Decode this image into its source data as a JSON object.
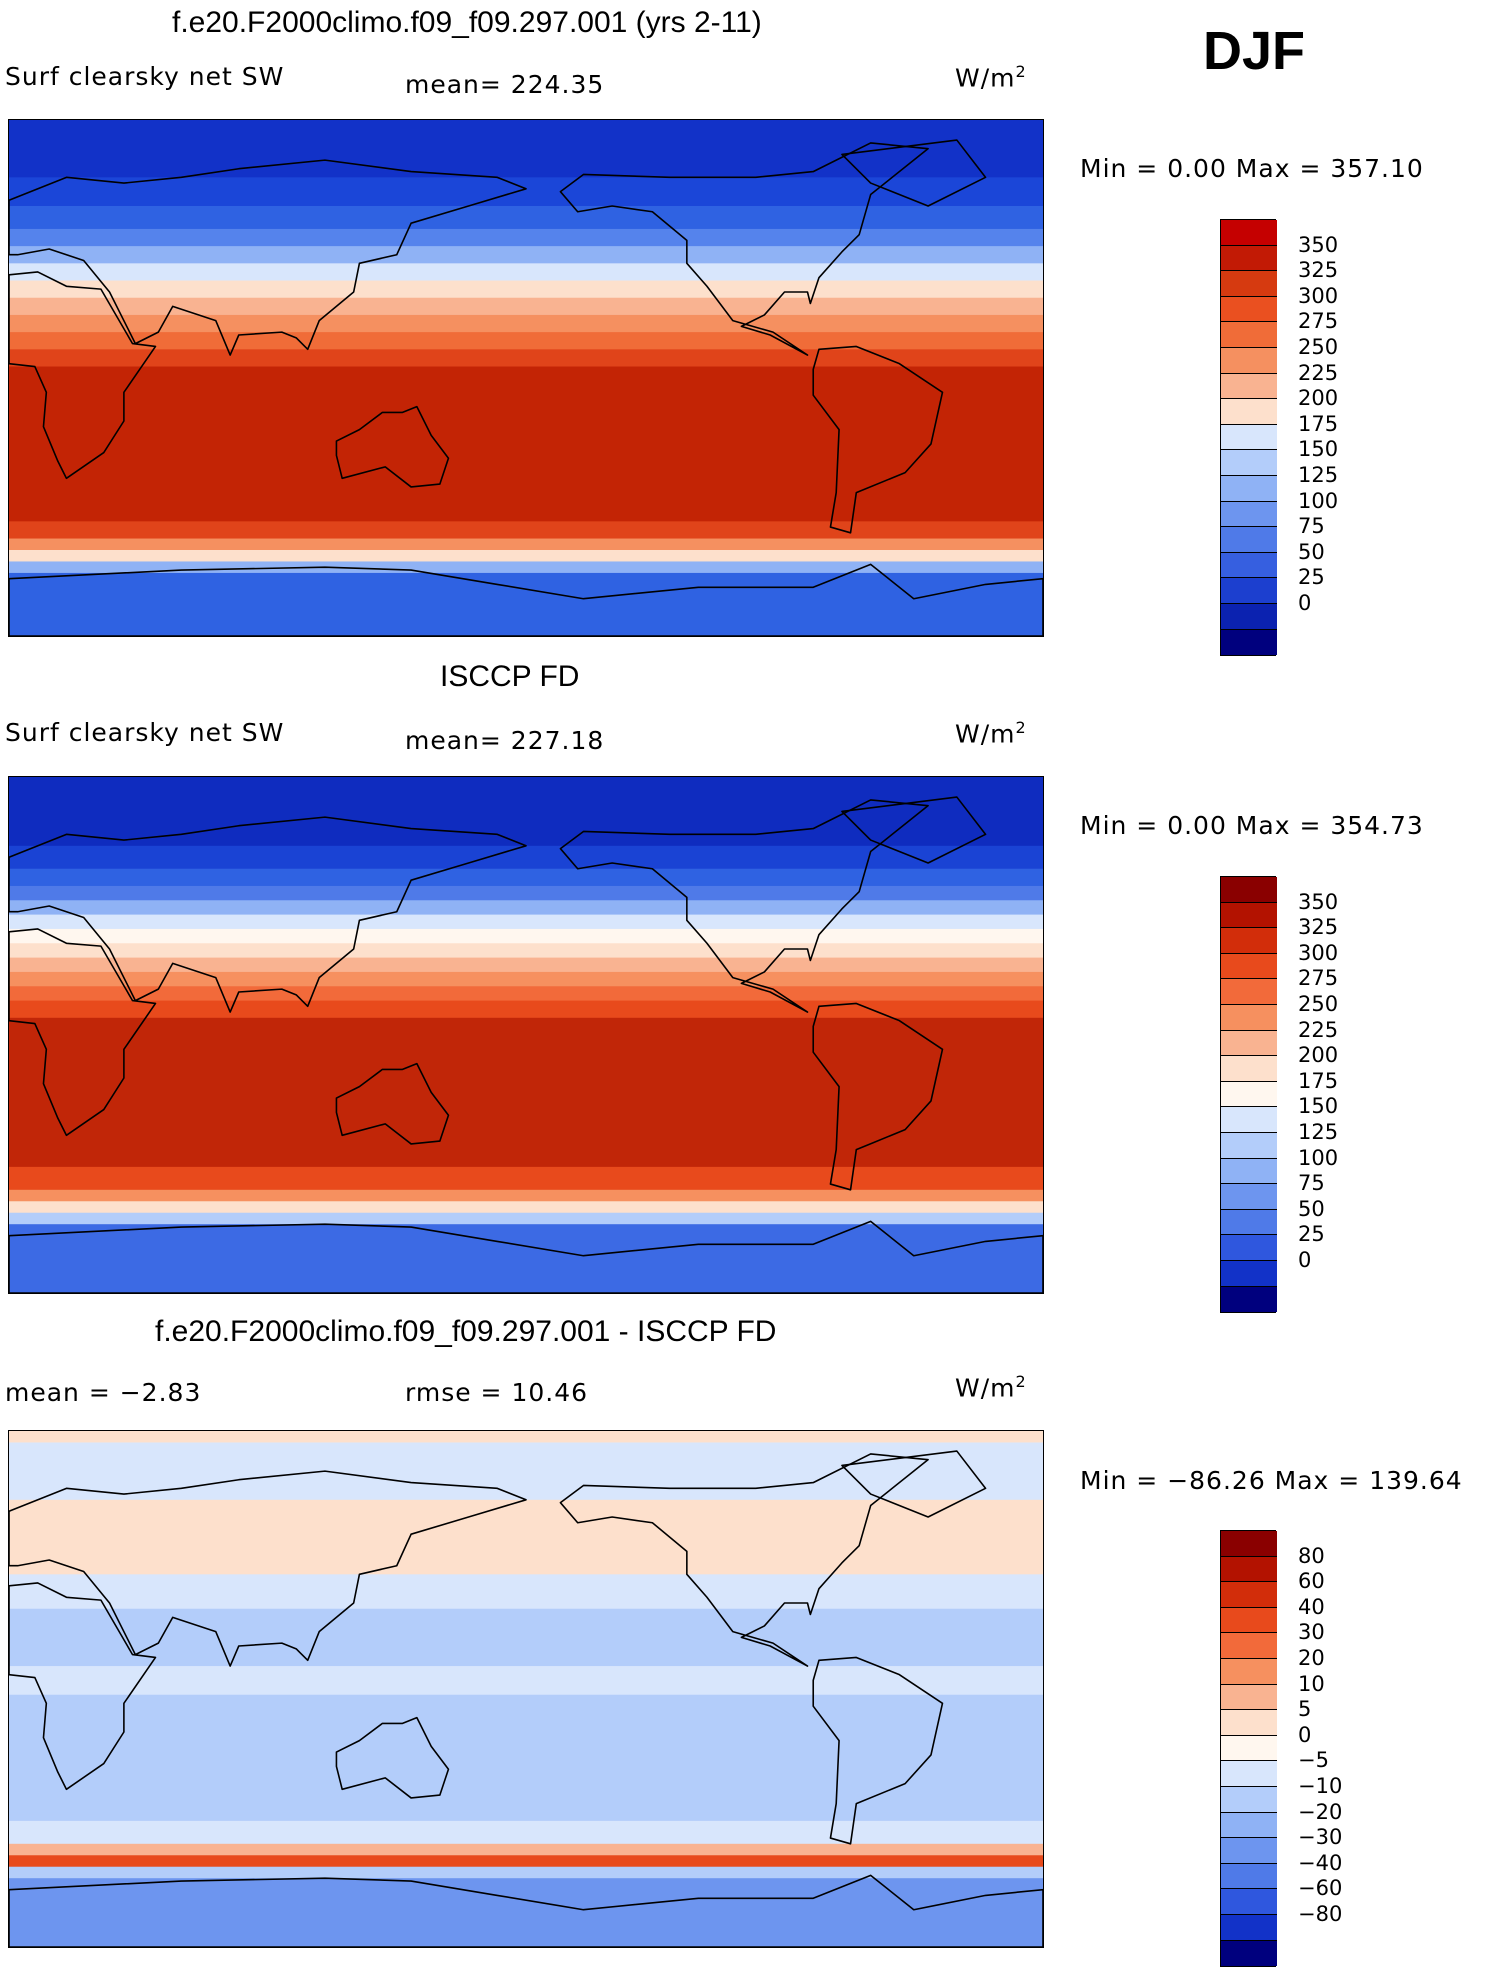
{
  "season": "DJF",
  "panels": [
    {
      "title": "f.e20.F2000climo.f09_f09.297.001 (yrs 2-11)",
      "left_label": "Surf clearsky net SW",
      "center_label": "mean= 224.35",
      "units": "W/m",
      "units_sup": "2",
      "minmax": "Min =    0.00 Max = 357.10",
      "colors": [
        "#c50000",
        "#c21a05",
        "#d63a10",
        "#ea5020",
        "#f06c38",
        "#f59060",
        "#f9b391",
        "#fde0cc",
        "#d8e6fc",
        "#b3cdfa",
        "#8fb2f5",
        "#6d95ef",
        "#4f7ae8",
        "#365fe0",
        "#1c3fcf",
        "#0b22b0",
        "#00007e"
      ],
      "labels": [
        "350",
        "325",
        "300",
        "275",
        "250",
        "225",
        "200",
        "175",
        "150",
        "125",
        "100",
        "75",
        "50",
        "25",
        "0"
      ],
      "bands": [
        {
          "lat_from": 90,
          "lat_to": 70,
          "color": "#1232c8"
        },
        {
          "lat_from": 70,
          "lat_to": 60,
          "color": "#1b46d8"
        },
        {
          "lat_from": 60,
          "lat_to": 52,
          "color": "#2f62e2"
        },
        {
          "lat_from": 52,
          "lat_to": 46,
          "color": "#5583ec"
        },
        {
          "lat_from": 46,
          "lat_to": 40,
          "color": "#8fb2f5"
        },
        {
          "lat_from": 40,
          "lat_to": 34,
          "color": "#d8e6fc"
        },
        {
          "lat_from": 34,
          "lat_to": 28,
          "color": "#fde0cc"
        },
        {
          "lat_from": 28,
          "lat_to": 22,
          "color": "#f9b391"
        },
        {
          "lat_from": 22,
          "lat_to": 16,
          "color": "#f59060"
        },
        {
          "lat_from": 16,
          "lat_to": 10,
          "color": "#f06c38"
        },
        {
          "lat_from": 10,
          "lat_to": 4,
          "color": "#e0441a"
        },
        {
          "lat_from": 4,
          "lat_to": -50,
          "color": "#c32405"
        },
        {
          "lat_from": -50,
          "lat_to": -56,
          "color": "#e0441a"
        },
        {
          "lat_from": -56,
          "lat_to": -60,
          "color": "#f59060"
        },
        {
          "lat_from": -60,
          "lat_to": -64,
          "color": "#fde0cc"
        },
        {
          "lat_from": -64,
          "lat_to": -68,
          "color": "#8fb2f5"
        },
        {
          "lat_from": -68,
          "lat_to": -90,
          "color": "#2f62e2"
        }
      ]
    },
    {
      "title": "ISCCP FD",
      "left_label": "Surf clearsky net SW",
      "center_label": "mean= 227.18",
      "units": "W/m",
      "units_sup": "2",
      "minmax": "Min =    0.00 Max = 354.73",
      "colors": [
        "#8a0000",
        "#b31200",
        "#d22d0a",
        "#e84a1c",
        "#f26a3a",
        "#f6905f",
        "#f9b391",
        "#fde0cc",
        "#fff7ef",
        "#d8e6fc",
        "#b3cdfa",
        "#8fb2f5",
        "#6d95ef",
        "#4f7ae8",
        "#2f57de",
        "#1232c8",
        "#00007e"
      ],
      "labels": [
        "350",
        "325",
        "300",
        "275",
        "250",
        "225",
        "200",
        "175",
        "150",
        "125",
        "100",
        "75",
        "50",
        "25",
        "0"
      ],
      "bands": [
        {
          "lat_from": 90,
          "lat_to": 66,
          "color": "#0f2cbf"
        },
        {
          "lat_from": 66,
          "lat_to": 58,
          "color": "#1a43d4"
        },
        {
          "lat_from": 58,
          "lat_to": 52,
          "color": "#2f62e2"
        },
        {
          "lat_from": 52,
          "lat_to": 47,
          "color": "#4f7ae8"
        },
        {
          "lat_from": 47,
          "lat_to": 42,
          "color": "#8fb2f5"
        },
        {
          "lat_from": 42,
          "lat_to": 37,
          "color": "#d8e6fc"
        },
        {
          "lat_from": 37,
          "lat_to": 32,
          "color": "#fff7ef"
        },
        {
          "lat_from": 32,
          "lat_to": 27,
          "color": "#fde0cc"
        },
        {
          "lat_from": 27,
          "lat_to": 22,
          "color": "#f9b391"
        },
        {
          "lat_from": 22,
          "lat_to": 17,
          "color": "#f6905f"
        },
        {
          "lat_from": 17,
          "lat_to": 12,
          "color": "#f26a3a"
        },
        {
          "lat_from": 12,
          "lat_to": 6,
          "color": "#e84a1c"
        },
        {
          "lat_from": 6,
          "lat_to": -46,
          "color": "#c12608"
        },
        {
          "lat_from": -46,
          "lat_to": -54,
          "color": "#e84a1c"
        },
        {
          "lat_from": -54,
          "lat_to": -58,
          "color": "#f6905f"
        },
        {
          "lat_from": -58,
          "lat_to": -62,
          "color": "#fde0cc"
        },
        {
          "lat_from": -62,
          "lat_to": -66,
          "color": "#b3cdfa"
        },
        {
          "lat_from": -66,
          "lat_to": -90,
          "color": "#3c6ae4"
        }
      ]
    },
    {
      "title": "f.e20.F2000climo.f09_f09.297.001 - ISCCP FD",
      "left_label": "mean =   −2.83",
      "center_label": "rmse =   10.46",
      "units": "W/m",
      "units_sup": "2",
      "minmax": "Min = −86.26 Max = 139.64",
      "colors": [
        "#8a0000",
        "#b31200",
        "#d22d0a",
        "#e84a1c",
        "#f26a3a",
        "#f6905f",
        "#f9b391",
        "#fde0cc",
        "#fff7ef",
        "#d8e6fc",
        "#b3cdfa",
        "#8fb2f5",
        "#6d95ef",
        "#4f7ae8",
        "#2f57de",
        "#1232c8",
        "#00007e"
      ],
      "labels": [
        "80",
        "60",
        "40",
        "30",
        "20",
        "10",
        "5",
        "0",
        "−5",
        "−10",
        "−20",
        "−30",
        "−40",
        "−60",
        "−80"
      ],
      "bands": [
        {
          "lat_from": 90,
          "lat_to": 86,
          "color": "#fde0cc"
        },
        {
          "lat_from": 86,
          "lat_to": 66,
          "color": "#d8e6fc"
        },
        {
          "lat_from": 66,
          "lat_to": 40,
          "color": "#fde0cc"
        },
        {
          "lat_from": 40,
          "lat_to": 28,
          "color": "#d8e6fc"
        },
        {
          "lat_from": 28,
          "lat_to": 8,
          "color": "#b3cdfa"
        },
        {
          "lat_from": 8,
          "lat_to": -2,
          "color": "#d8e6fc"
        },
        {
          "lat_from": -2,
          "lat_to": -46,
          "color": "#b3cdfa"
        },
        {
          "lat_from": -46,
          "lat_to": -54,
          "color": "#d8e6fc"
        },
        {
          "lat_from": -54,
          "lat_to": -58,
          "color": "#f9b391"
        },
        {
          "lat_from": -58,
          "lat_to": -62,
          "color": "#e84a1c"
        },
        {
          "lat_from": -62,
          "lat_to": -66,
          "color": "#b3cdfa"
        },
        {
          "lat_from": -66,
          "lat_to": -90,
          "color": "#6d95ef"
        }
      ]
    }
  ]
}
